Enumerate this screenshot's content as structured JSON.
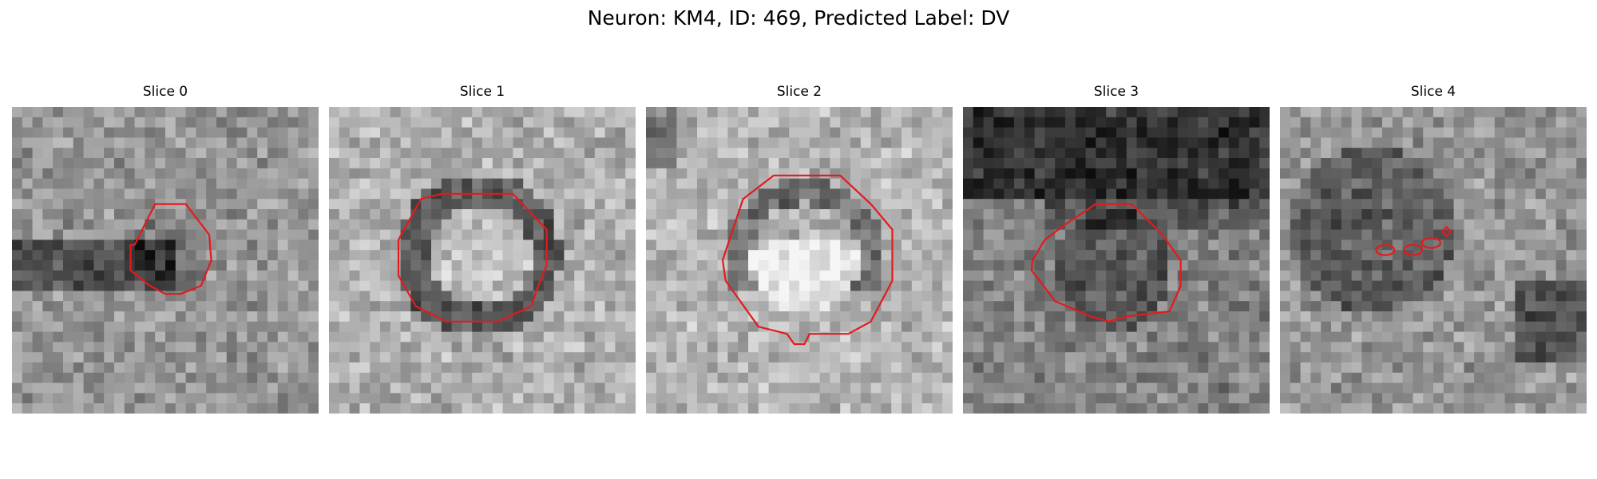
{
  "figure": {
    "suptitle": "Neuron: KM4, ID: 469, Predicted Label: DV"
  },
  "panels": [
    {
      "title": "Slice 0",
      "contour_color": "#e41a1c",
      "base_tone": 150,
      "dark_center": true
    },
    {
      "title": "Slice 1",
      "contour_color": "#e41a1c",
      "base_tone": 175,
      "dark_center": false
    },
    {
      "title": "Slice 2",
      "contour_color": "#e41a1c",
      "base_tone": 180,
      "dark_center": false
    },
    {
      "title": "Slice 3",
      "contour_color": "#e41a1c",
      "base_tone": 130,
      "dark_center": true
    },
    {
      "title": "Slice 4",
      "contour_color": "#e41a1c",
      "base_tone": 150,
      "dark_center": true
    }
  ]
}
